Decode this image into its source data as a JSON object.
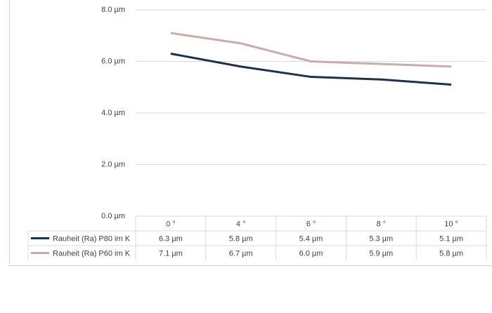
{
  "chart_data": {
    "type": "line",
    "categories": [
      "0 °",
      "4 °",
      "6 °",
      "8 °",
      "10 °"
    ],
    "series": [
      {
        "name": "Rauheit (Ra) P80 im K",
        "color": "#1f3049",
        "values": [
          6.3,
          5.8,
          5.4,
          5.3,
          5.1
        ],
        "value_labels": [
          "6.3 µm",
          "5.8 µm",
          "5.4 µm",
          "5.3 µm",
          "5.1 µm"
        ]
      },
      {
        "name": "Rauheit (Ra) P60 im K",
        "color": "#c8ada9",
        "values": [
          7.1,
          6.7,
          6.0,
          5.9,
          5.8
        ],
        "value_labels": [
          "7.1 µm",
          "6.7 µm",
          "6.0 µm",
          "5.9 µm",
          "5.8 µm"
        ]
      }
    ],
    "ylim": [
      0,
      8
    ],
    "yticks": [
      {
        "value": 0,
        "label": "0.0 µm"
      },
      {
        "value": 2,
        "label": "2.0 µm"
      },
      {
        "value": 4,
        "label": "4.0 µm"
      },
      {
        "value": 6,
        "label": "6.0 µm"
      },
      {
        "value": 8,
        "label": "8.0 µm"
      }
    ],
    "grid": true
  }
}
